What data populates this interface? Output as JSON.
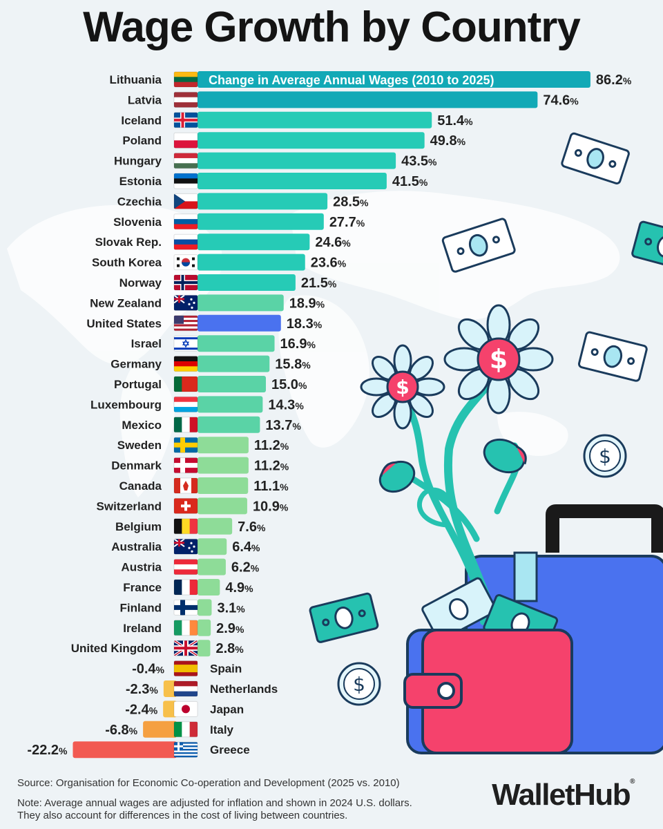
{
  "title": "Wage Growth by Country",
  "chart_data": {
    "type": "bar",
    "orientation": "horizontal",
    "subtitle": "Change in Average Annual Wages (2010 to 2025)",
    "value_suffix": "%",
    "categories": [
      "Lithuania",
      "Latvia",
      "Iceland",
      "Poland",
      "Hungary",
      "Estonia",
      "Czechia",
      "Slovenia",
      "Slovak Rep.",
      "South Korea",
      "Norway",
      "New Zealand",
      "United States",
      "Israel",
      "Germany",
      "Portugal",
      "Luxembourg",
      "Mexico",
      "Sweden",
      "Denmark",
      "Canada",
      "Switzerland",
      "Belgium",
      "Australia",
      "Austria",
      "France",
      "Finland",
      "Ireland",
      "United Kingdom",
      "Spain",
      "Netherlands",
      "Japan",
      "Italy",
      "Greece"
    ],
    "values": [
      86.2,
      74.6,
      51.4,
      49.8,
      43.5,
      41.5,
      28.5,
      27.7,
      24.6,
      23.6,
      21.5,
      18.9,
      18.3,
      16.9,
      15.8,
      15.0,
      14.3,
      13.7,
      11.2,
      11.2,
      11.1,
      10.9,
      7.6,
      6.4,
      6.2,
      4.9,
      3.1,
      2.9,
      2.8,
      -0.4,
      -2.3,
      -2.4,
      -6.8,
      -22.2
    ],
    "value_labels": [
      "86.2",
      "74.6",
      "51.4",
      "49.8",
      "43.5",
      "41.5",
      "28.5",
      "27.7",
      "24.6",
      "23.6",
      "21.5",
      "18.9",
      "18.3",
      "16.9",
      "15.8",
      "15.0",
      "14.3",
      "13.7",
      "11.2",
      "11.2",
      "11.1",
      "10.9",
      "7.6",
      "6.4",
      "6.2",
      "4.9",
      "3.1",
      "2.9",
      "2.8",
      "-0.4",
      "-2.3",
      "-2.4",
      "-6.8",
      "-22.2"
    ],
    "highlight": "United States",
    "colors": {
      "top": "#12a9b6",
      "high": "#26cbb6",
      "mid": "#5ad3a6",
      "low": "#8edc98",
      "highlight": "#4a72ef",
      "neg_small": "#f7c04a",
      "neg_mid": "#f5a041",
      "neg_large": "#f25a52"
    },
    "flags": {
      "Lithuania": "#fdb913,#006a44,#c1272d",
      "Latvia": "#9e3039,#ffffff,#9e3039",
      "Iceland": "nordic:#02529c,#ffffff,#dc1e35",
      "Poland": "#ffffff,#dc143c",
      "Hungary": "#ce2939,#ffffff,#477050",
      "Estonia": "#0072ce,#111111,#ffffff",
      "Czechia": "czech",
      "Slovenia": "#ffffff,#005da4,#ed1c24",
      "Slovak Rep.": "#ffffff,#0b4ea2,#ee1c25",
      "South Korea": "korea",
      "Norway": "nordic:#ba0c2f,#ffffff,#00205b",
      "New Zealand": "nz",
      "United States": "us",
      "Israel": "israel",
      "Germany": "#111111,#dd0000,#ffce00",
      "Portugal": "v:#046a38,#da291c,#da291c",
      "Luxembourg": "#ef3340,#ffffff,#00a3e0",
      "Mexico": "v:#006847,#ffffff,#ce1126",
      "Sweden": "nordic:#006aa7,#fecc02,#fecc02",
      "Denmark": "nordic:#c60c30,#ffffff,#ffffff",
      "Canada": "canada",
      "Switzerland": "swiss",
      "Belgium": "v:#111111,#fdda24,#ef3340",
      "Australia": "nz",
      "Austria": "#ed2939,#ffffff,#ed2939",
      "France": "v:#002654,#ffffff,#ed2939",
      "Finland": "nordic:#ffffff,#002f6c,#002f6c",
      "Ireland": "v:#169b62,#ffffff,#ff883e",
      "United Kingdom": "uk",
      "Spain": "#aa151b,#f1bf00,#f1bf00,#aa151b",
      "Netherlands": "#ae1c28,#ffffff,#21468b",
      "Japan": "japan",
      "Italy": "v:#009246,#ffffff,#ce2b37",
      "Greece": "greece"
    }
  },
  "footer": {
    "source": "Source: Organisation for Economic Co-operation and Development (2025 vs. 2010)",
    "note_1": "Note: Average annual wages are adjusted for inflation and shown in 2024 U.S. dollars.",
    "note_2": "They also account for differences in the cost of living between countries."
  },
  "brand": "WalletHub",
  "decor_icons": [
    "world-map",
    "money-bill-icon",
    "coin-dollar-icon",
    "dollar-flower-icon",
    "briefcase-icon",
    "wallet-icon"
  ]
}
